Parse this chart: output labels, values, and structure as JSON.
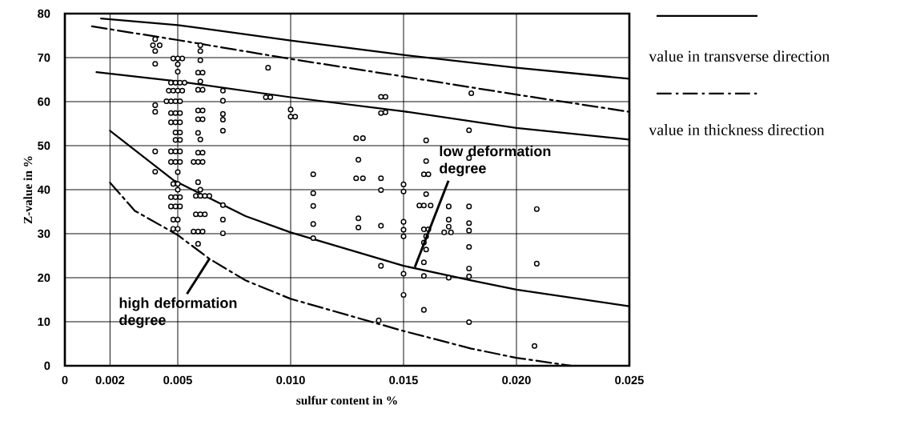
{
  "chart_data": {
    "type": "line",
    "xlabel": "sulfur content in %",
    "ylabel": "Z-value in %",
    "xlim": [
      0,
      0.025
    ],
    "ylim": [
      0,
      80
    ],
    "xticks": [
      0,
      0.002,
      0.005,
      {
        "value": 0.01,
        "label": "0.010"
      },
      0.015,
      {
        "value": 0.02,
        "label": "0.020"
      },
      0.025
    ],
    "yticks": [
      0,
      10,
      20,
      30,
      40,
      50,
      60,
      70,
      80
    ],
    "grid": true,
    "legend": "right",
    "annotations": [
      {
        "text": "low deformation degree",
        "x": 0.0155,
        "y": 22.4
      },
      {
        "text": "high deformation degree",
        "x": 0.0064,
        "y": 24.3
      }
    ],
    "series": [
      {
        "type": "scatter",
        "color": "#000000",
        "marker": "circle",
        "x": [
          0.004,
          0.0039,
          0.0042,
          0.004,
          0.004,
          0.004,
          0.004,
          0.004,
          0.004,
          0.0048,
          0.005,
          0.0052,
          0.005,
          0.005,
          0.0047,
          0.0049,
          0.0051,
          0.0053,
          0.0046,
          0.0048,
          0.005,
          0.0052,
          0.0045,
          0.0047,
          0.0049,
          0.0051,
          0.0047,
          0.0049,
          0.0051,
          0.0047,
          0.0049,
          0.0051,
          0.0049,
          0.0051,
          0.0049,
          0.0051,
          0.0047,
          0.0049,
          0.0051,
          0.0047,
          0.0049,
          0.0051,
          0.005,
          0.0048,
          0.005,
          0.005,
          0.0047,
          0.0049,
          0.0051,
          0.0047,
          0.0049,
          0.0051,
          0.0048,
          0.005,
          0.0048,
          0.005,
          0.006,
          0.006,
          0.006,
          0.0059,
          0.0061,
          0.006,
          0.0059,
          0.0061,
          0.0059,
          0.0061,
          0.0059,
          0.0061,
          0.0059,
          0.006,
          0.0059,
          0.0061,
          0.0057,
          0.0059,
          0.0061,
          0.0059,
          0.006,
          0.0058,
          0.006,
          0.0062,
          0.0064,
          0.0058,
          0.006,
          0.0062,
          0.0057,
          0.0059,
          0.0061,
          0.0059,
          0.007,
          0.007,
          0.007,
          0.007,
          0.007,
          0.007,
          0.007,
          0.007,
          0.009,
          0.0089,
          0.0091,
          0.01,
          0.01,
          0.0102,
          0.011,
          0.011,
          0.011,
          0.011,
          0.011,
          0.0129,
          0.0132,
          0.013,
          0.0129,
          0.0132,
          0.013,
          0.013,
          0.014,
          0.0142,
          0.014,
          0.0142,
          0.014,
          0.014,
          0.014,
          0.014,
          0.0139,
          0.015,
          0.015,
          0.015,
          0.015,
          0.015,
          0.015,
          0.015,
          0.016,
          0.016,
          0.0159,
          0.0161,
          0.016,
          0.0157,
          0.0159,
          0.0162,
          0.0159,
          0.0161,
          0.016,
          0.0159,
          0.016,
          0.0159,
          0.0159,
          0.0159,
          0.017,
          0.017,
          0.017,
          0.0168,
          0.0171,
          0.017,
          0.018,
          0.0179,
          0.0179,
          0.0179,
          0.0179,
          0.0179,
          0.0179,
          0.0179,
          0.0179,
          0.0179,
          0.0209,
          0.0209,
          0.0208
        ],
        "values": [
          74.2,
          72.8,
          72.8,
          71.5,
          68.6,
          59.2,
          57.7,
          48.7,
          44.1,
          69.8,
          69.8,
          69.8,
          68.5,
          66.8,
          64.3,
          64.3,
          64.3,
          64.3,
          62.5,
          62.5,
          62.5,
          62.5,
          60.1,
          60.1,
          60.1,
          60.1,
          57.4,
          57.4,
          57.4,
          55.3,
          55.3,
          55.3,
          53,
          53,
          51.3,
          51.3,
          48.7,
          48.7,
          48.7,
          46.3,
          46.3,
          46.3,
          44,
          41.3,
          41.3,
          40,
          38.3,
          38.3,
          38.3,
          36.2,
          36.2,
          36.2,
          33.2,
          33.2,
          31.1,
          31.1,
          72.8,
          71.5,
          69.4,
          66.6,
          66.6,
          64.6,
          62.7,
          62.7,
          58,
          58,
          56,
          56,
          52.9,
          51.4,
          48.4,
          48.4,
          46.3,
          46.3,
          46.3,
          41.7,
          40,
          38.6,
          38.6,
          38.6,
          38.6,
          34.4,
          34.4,
          34.4,
          30.5,
          30.5,
          30.5,
          27.7,
          62.5,
          60.2,
          57.2,
          55.9,
          53.4,
          36.5,
          33.2,
          30.1,
          67.7,
          61,
          61,
          58.2,
          56.6,
          56.6,
          43.5,
          39.2,
          36.3,
          32.2,
          29,
          51.7,
          51.7,
          46.8,
          42.6,
          42.6,
          33.5,
          31.4,
          61.1,
          61.1,
          57.4,
          57.6,
          42.6,
          39.9,
          31.8,
          22.7,
          10.3,
          41.2,
          39.6,
          32.7,
          30.9,
          29.4,
          20.9,
          16.1,
          51.2,
          46.5,
          43.5,
          43.5,
          39,
          36.4,
          36.4,
          36.4,
          31,
          31,
          29.4,
          28,
          26.4,
          23.5,
          20.4,
          12.7,
          36.2,
          33.2,
          31.6,
          30.3,
          30.3,
          20,
          61.9,
          53.5,
          47.2,
          36.2,
          32.4,
          30.7,
          27,
          22.1,
          20.3,
          9.9,
          35.6,
          23.2,
          4.5
        ]
      },
      {
        "type": "line",
        "name": "value in transverse direction",
        "color": "#000000",
        "line_style": "solid",
        "x": [
          0.0016,
          0.005,
          0.01,
          0.015,
          0.02,
          0.025
        ],
        "values": [
          78.9,
          77.4,
          73.9,
          70.6,
          67.7,
          65.2
        ]
      },
      {
        "type": "line",
        "name": "value in thickness direction",
        "color": "#000000",
        "line_style": "dashdot",
        "x": [
          0.0012,
          0.005,
          0.01,
          0.015,
          0.02,
          0.025
        ],
        "values": [
          77.1,
          74,
          69.7,
          65.7,
          61.6,
          57.7
        ]
      },
      {
        "type": "line",
        "color": "#000000",
        "line_style": "solid",
        "x": [
          0.0014,
          0.005,
          0.01,
          0.015,
          0.02,
          0.025
        ],
        "values": [
          66.7,
          64.6,
          61,
          57.8,
          54,
          51.4
        ]
      },
      {
        "type": "line",
        "color": "#000000",
        "line_style": "solid",
        "x": [
          0.002,
          0.0048,
          0.006,
          0.008,
          0.01,
          0.015,
          0.018,
          0.02,
          0.025
        ],
        "values": [
          53.4,
          42.2,
          39.1,
          34,
          30.3,
          22.7,
          19.4,
          17.3,
          13.5
        ]
      },
      {
        "type": "line",
        "color": "#000000",
        "line_style": "dashdot",
        "x": [
          0.002,
          0.0031,
          0.005,
          0.0064,
          0.008,
          0.01,
          0.015,
          0.018,
          0.02,
          0.0224
        ],
        "values": [
          41.6,
          35.2,
          29.7,
          24.3,
          19.4,
          15.2,
          7.9,
          3.9,
          1.8,
          0
        ]
      }
    ]
  }
}
